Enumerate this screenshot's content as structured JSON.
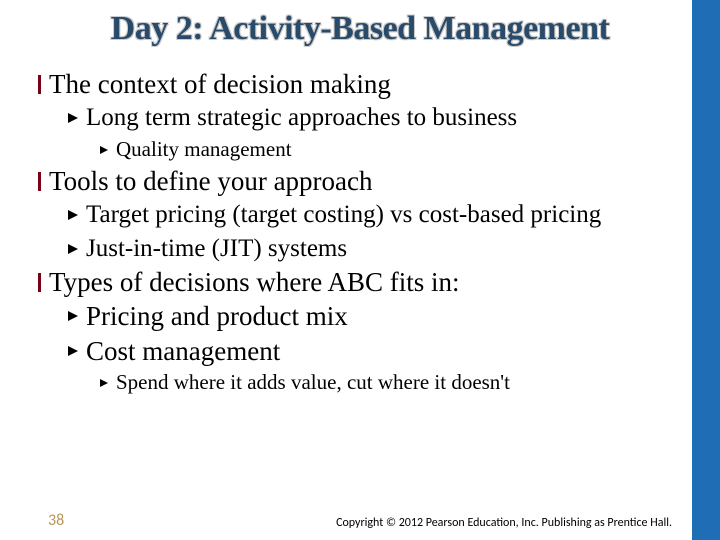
{
  "colors": {
    "sidebar": "#1f6db5",
    "title": "#2a4a6a",
    "bullet_bar": "#7a0019",
    "page_num": "#b9975b",
    "background": "#ffffff"
  },
  "title": "Day 2: Activity-Based Management",
  "bullets": {
    "l1_1": "The context of decision making",
    "l2_1": "Long term strategic approaches to business",
    "l3_1": "Quality management",
    "l1_2": "Tools to define your approach",
    "l2_2": "Target pricing (target costing) vs cost-based pricing",
    "l2_3": "Just-in-time (JIT) systems",
    "l1_3": "Types of decisions where ABC fits in:",
    "l2_4": "Pricing and product mix",
    "l2_5": "Cost management",
    "l3_2": "Spend where it adds value, cut where it doesn't"
  },
  "footer": {
    "page": "38",
    "copyright": "Copyright © 2012 Pearson Education, Inc. Publishing as Prentice Hall."
  }
}
